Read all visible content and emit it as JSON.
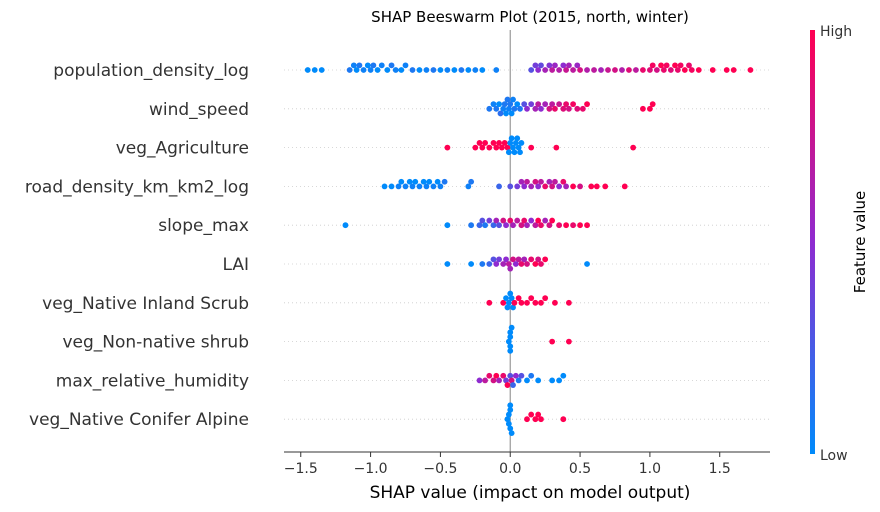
{
  "chart_data": {
    "type": "scatter",
    "subtype": "beeswarm",
    "title": "SHAP Beeswarm Plot (2015, north, winter)",
    "xlabel": "SHAP value (impact on model output)",
    "xlim": [
      -1.62,
      1.86
    ],
    "xticks": [
      -1.5,
      -1.0,
      -0.5,
      0.0,
      0.5,
      1.0,
      1.5
    ],
    "xtick_labels": [
      "−1.5",
      "−1.0",
      "−0.5",
      "0.0",
      "0.5",
      "1.0",
      "1.5"
    ],
    "colorbar": {
      "title": "Feature value",
      "high_label": "High",
      "low_label": "Low",
      "low_color": "#008bfb",
      "mid_color": "#8f2bd0",
      "high_color": "#ff0052"
    },
    "features": [
      {
        "name": "population_density_log",
        "points": [
          [
            -1.45,
            0.0
          ],
          [
            -1.4,
            0.0
          ],
          [
            -1.35,
            0.0
          ],
          [
            -1.15,
            0.1
          ],
          [
            -1.12,
            0.05
          ],
          [
            -1.1,
            0.0
          ],
          [
            -1.08,
            0.1
          ],
          [
            -1.05,
            0.05
          ],
          [
            -1.02,
            0.0
          ],
          [
            -1.0,
            0.05
          ],
          [
            -0.98,
            0.1
          ],
          [
            -0.95,
            0.0
          ],
          [
            -0.92,
            0.05
          ],
          [
            -0.88,
            0.0
          ],
          [
            -0.85,
            0.1
          ],
          [
            -0.82,
            0.05
          ],
          [
            -0.78,
            0.0
          ],
          [
            -0.75,
            0.05
          ],
          [
            -0.7,
            0.1
          ],
          [
            -0.65,
            0.0
          ],
          [
            -0.6,
            0.05
          ],
          [
            -0.55,
            0.1
          ],
          [
            -0.5,
            0.0
          ],
          [
            -0.45,
            0.05
          ],
          [
            -0.4,
            0.0
          ],
          [
            -0.35,
            0.1
          ],
          [
            -0.3,
            0.0
          ],
          [
            -0.25,
            0.05
          ],
          [
            -0.2,
            0.0
          ],
          [
            -0.1,
            0.05
          ],
          [
            0.15,
            0.3
          ],
          [
            0.18,
            0.4
          ],
          [
            0.2,
            0.5
          ],
          [
            0.22,
            0.35
          ],
          [
            0.25,
            0.6
          ],
          [
            0.28,
            0.45
          ],
          [
            0.3,
            0.7
          ],
          [
            0.32,
            0.55
          ],
          [
            0.35,
            0.65
          ],
          [
            0.38,
            0.5
          ],
          [
            0.4,
            0.75
          ],
          [
            0.42,
            0.6
          ],
          [
            0.45,
            0.7
          ],
          [
            0.48,
            0.55
          ],
          [
            0.5,
            0.8
          ],
          [
            0.55,
            0.65
          ],
          [
            0.6,
            0.7
          ],
          [
            0.65,
            0.6
          ],
          [
            0.7,
            0.75
          ],
          [
            0.75,
            0.8
          ],
          [
            0.8,
            0.65
          ],
          [
            0.85,
            0.85
          ],
          [
            0.9,
            0.7
          ],
          [
            0.95,
            0.9
          ],
          [
            1.0,
            0.85
          ],
          [
            1.02,
            0.95
          ],
          [
            1.05,
            0.8
          ],
          [
            1.08,
            1.0
          ],
          [
            1.1,
            0.9
          ],
          [
            1.12,
            0.95
          ],
          [
            1.15,
            0.85
          ],
          [
            1.18,
            1.0
          ],
          [
            1.2,
            0.9
          ],
          [
            1.22,
            0.95
          ],
          [
            1.25,
            1.0
          ],
          [
            1.28,
            0.9
          ],
          [
            1.3,
            0.95
          ],
          [
            1.35,
            1.0
          ],
          [
            1.45,
            1.0
          ],
          [
            1.55,
            1.0
          ],
          [
            1.6,
            1.0
          ],
          [
            1.72,
            1.0
          ]
        ]
      },
      {
        "name": "wind_speed",
        "points": [
          [
            -0.15,
            0.1
          ],
          [
            -0.12,
            0.05
          ],
          [
            -0.1,
            0.1
          ],
          [
            -0.08,
            0.0
          ],
          [
            -0.07,
            0.15
          ],
          [
            -0.05,
            0.05
          ],
          [
            -0.04,
            0.1
          ],
          [
            -0.03,
            0.0
          ],
          [
            -0.02,
            0.1
          ],
          [
            -0.01,
            0.05
          ],
          [
            0.0,
            0.1
          ],
          [
            0.01,
            0.0
          ],
          [
            0.02,
            0.05
          ],
          [
            0.03,
            0.1
          ],
          [
            0.05,
            0.0
          ],
          [
            0.07,
            0.1
          ],
          [
            0.1,
            0.3
          ],
          [
            0.12,
            0.5
          ],
          [
            0.15,
            0.4
          ],
          [
            0.18,
            0.6
          ],
          [
            0.2,
            0.7
          ],
          [
            0.22,
            0.5
          ],
          [
            0.25,
            0.6
          ],
          [
            0.28,
            0.8
          ],
          [
            0.3,
            0.7
          ],
          [
            0.32,
            0.9
          ],
          [
            0.35,
            0.75
          ],
          [
            0.38,
            0.85
          ],
          [
            0.4,
            0.9
          ],
          [
            0.42,
            0.8
          ],
          [
            0.45,
            0.95
          ],
          [
            0.48,
            0.85
          ],
          [
            0.52,
            0.9
          ],
          [
            0.55,
            1.0
          ],
          [
            0.95,
            1.0
          ],
          [
            1.0,
            1.0
          ],
          [
            1.02,
            1.0
          ]
        ]
      },
      {
        "name": "veg_Agriculture",
        "points": [
          [
            -0.45,
            1.0
          ],
          [
            -0.25,
            1.0
          ],
          [
            -0.22,
            1.0
          ],
          [
            -0.2,
            1.0
          ],
          [
            -0.18,
            1.0
          ],
          [
            -0.15,
            1.0
          ],
          [
            -0.12,
            1.0
          ],
          [
            -0.1,
            1.0
          ],
          [
            -0.08,
            1.0
          ],
          [
            -0.06,
            1.0
          ],
          [
            -0.04,
            1.0
          ],
          [
            -0.02,
            1.0
          ],
          [
            -0.01,
            0.0
          ],
          [
            0.0,
            0.0
          ],
          [
            0.01,
            0.0
          ],
          [
            0.02,
            0.0
          ],
          [
            0.03,
            0.0
          ],
          [
            0.04,
            0.0
          ],
          [
            0.05,
            0.0
          ],
          [
            0.06,
            0.0
          ],
          [
            0.07,
            0.0
          ],
          [
            0.08,
            0.0
          ],
          [
            0.15,
            1.0
          ],
          [
            0.33,
            1.0
          ],
          [
            0.88,
            1.0
          ]
        ]
      },
      {
        "name": "road_density_km_km2_log",
        "points": [
          [
            -0.9,
            0.0
          ],
          [
            -0.85,
            0.0
          ],
          [
            -0.8,
            0.05
          ],
          [
            -0.78,
            0.0
          ],
          [
            -0.75,
            0.05
          ],
          [
            -0.72,
            0.0
          ],
          [
            -0.7,
            0.05
          ],
          [
            -0.68,
            0.0
          ],
          [
            -0.65,
            0.05
          ],
          [
            -0.62,
            0.0
          ],
          [
            -0.6,
            0.05
          ],
          [
            -0.58,
            0.0
          ],
          [
            -0.55,
            0.05
          ],
          [
            -0.52,
            0.0
          ],
          [
            -0.5,
            0.05
          ],
          [
            -0.47,
            0.1
          ],
          [
            -0.3,
            0.05
          ],
          [
            -0.28,
            0.1
          ],
          [
            -0.08,
            0.2
          ],
          [
            0.0,
            0.3
          ],
          [
            0.05,
            0.4
          ],
          [
            0.08,
            0.6
          ],
          [
            0.1,
            0.5
          ],
          [
            0.12,
            0.7
          ],
          [
            0.15,
            0.6
          ],
          [
            0.18,
            0.8
          ],
          [
            0.2,
            0.5
          ],
          [
            0.22,
            0.7
          ],
          [
            0.25,
            0.9
          ],
          [
            0.28,
            0.6
          ],
          [
            0.3,
            0.8
          ],
          [
            0.32,
            0.7
          ],
          [
            0.35,
            0.5
          ],
          [
            0.38,
            0.9
          ],
          [
            0.4,
            0.6
          ],
          [
            0.45,
            1.0
          ],
          [
            0.5,
            0.8
          ],
          [
            0.58,
            1.0
          ],
          [
            0.62,
            1.0
          ],
          [
            0.68,
            1.0
          ],
          [
            0.82,
            1.0
          ]
        ]
      },
      {
        "name": "slope_max",
        "points": [
          [
            -1.18,
            0.0
          ],
          [
            -0.45,
            0.0
          ],
          [
            -0.28,
            0.1
          ],
          [
            -0.22,
            0.2
          ],
          [
            -0.2,
            0.3
          ],
          [
            -0.18,
            0.1
          ],
          [
            -0.15,
            0.4
          ],
          [
            -0.12,
            0.2
          ],
          [
            -0.1,
            0.6
          ],
          [
            -0.08,
            0.3
          ],
          [
            -0.05,
            0.8
          ],
          [
            -0.03,
            0.5
          ],
          [
            0.0,
            0.9
          ],
          [
            0.02,
            0.6
          ],
          [
            0.05,
            0.7
          ],
          [
            0.08,
            0.8
          ],
          [
            0.1,
            0.9
          ],
          [
            0.12,
            0.6
          ],
          [
            0.15,
            0.5
          ],
          [
            0.18,
            0.7
          ],
          [
            0.2,
            1.0
          ],
          [
            0.22,
            0.9
          ],
          [
            0.25,
            0.6
          ],
          [
            0.28,
            0.8
          ],
          [
            0.3,
            1.0
          ],
          [
            0.35,
            0.9
          ],
          [
            0.4,
            1.0
          ],
          [
            0.45,
            0.9
          ],
          [
            0.5,
            1.0
          ],
          [
            0.55,
            1.0
          ]
        ]
      },
      {
        "name": "LAI",
        "points": [
          [
            -0.45,
            0.0
          ],
          [
            -0.28,
            0.0
          ],
          [
            -0.2,
            0.1
          ],
          [
            -0.15,
            0.2
          ],
          [
            -0.12,
            0.3
          ],
          [
            -0.1,
            0.5
          ],
          [
            -0.08,
            0.4
          ],
          [
            -0.05,
            0.6
          ],
          [
            -0.03,
            0.5
          ],
          [
            -0.01,
            0.7
          ],
          [
            0.0,
            0.6
          ],
          [
            0.02,
            0.8
          ],
          [
            0.04,
            0.5
          ],
          [
            0.06,
            0.7
          ],
          [
            0.08,
            0.9
          ],
          [
            0.1,
            0.6
          ],
          [
            0.12,
            0.8
          ],
          [
            0.15,
            0.9
          ],
          [
            0.18,
            1.0
          ],
          [
            0.2,
            0.8
          ],
          [
            0.22,
            0.9
          ],
          [
            0.25,
            1.0
          ],
          [
            0.55,
            0.0
          ]
        ]
      },
      {
        "name": "veg_Native Inland Scrub",
        "points": [
          [
            -0.15,
            1.0
          ],
          [
            -0.05,
            1.0
          ],
          [
            -0.03,
            0.0
          ],
          [
            -0.02,
            0.0
          ],
          [
            -0.01,
            0.0
          ],
          [
            0.0,
            0.0
          ],
          [
            0.01,
            0.0
          ],
          [
            0.02,
            0.0
          ],
          [
            0.03,
            1.0
          ],
          [
            0.06,
            1.0
          ],
          [
            0.08,
            1.0
          ],
          [
            0.12,
            1.0
          ],
          [
            0.15,
            1.0
          ],
          [
            0.18,
            1.0
          ],
          [
            0.22,
            1.0
          ],
          [
            0.25,
            1.0
          ],
          [
            0.32,
            1.0
          ],
          [
            0.42,
            1.0
          ]
        ]
      },
      {
        "name": "veg_Non-native shrub",
        "points": [
          [
            -0.01,
            0.0
          ],
          [
            0.0,
            0.0
          ],
          [
            0.0,
            0.0
          ],
          [
            0.0,
            0.0
          ],
          [
            0.01,
            0.0
          ],
          [
            0.0,
            0.0
          ],
          [
            0.3,
            1.0
          ],
          [
            0.42,
            1.0
          ]
        ]
      },
      {
        "name": "max_relative_humidity",
        "points": [
          [
            -0.22,
            0.5
          ],
          [
            -0.18,
            0.7
          ],
          [
            -0.15,
            0.9
          ],
          [
            -0.12,
            0.8
          ],
          [
            -0.1,
            1.0
          ],
          [
            -0.08,
            0.6
          ],
          [
            -0.05,
            0.9
          ],
          [
            -0.03,
            0.4
          ],
          [
            -0.02,
            1.0
          ],
          [
            0.0,
            0.3
          ],
          [
            0.01,
            0.8
          ],
          [
            0.02,
            0.2
          ],
          [
            0.04,
            0.5
          ],
          [
            0.06,
            0.1
          ],
          [
            0.08,
            0.3
          ],
          [
            0.12,
            0.0
          ],
          [
            0.15,
            0.1
          ],
          [
            0.2,
            0.0
          ],
          [
            0.3,
            0.0
          ],
          [
            0.35,
            0.0
          ],
          [
            0.38,
            0.0
          ]
        ]
      },
      {
        "name": "veg_Native Conifer Alpine",
        "points": [
          [
            -0.02,
            0.0
          ],
          [
            -0.01,
            0.0
          ],
          [
            0.0,
            0.0
          ],
          [
            0.0,
            0.0
          ],
          [
            0.01,
            0.0
          ],
          [
            0.0,
            0.0
          ],
          [
            -0.01,
            0.0
          ],
          [
            0.12,
            1.0
          ],
          [
            0.15,
            1.0
          ],
          [
            0.18,
            1.0
          ],
          [
            0.2,
            1.0
          ],
          [
            0.22,
            1.0
          ],
          [
            0.38,
            1.0
          ]
        ]
      }
    ]
  }
}
